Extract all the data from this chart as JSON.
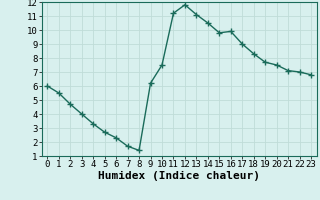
{
  "x": [
    0,
    1,
    2,
    3,
    4,
    5,
    6,
    7,
    8,
    9,
    10,
    11,
    12,
    13,
    14,
    15,
    16,
    17,
    18,
    19,
    20,
    21,
    22,
    23
  ],
  "y": [
    6.0,
    5.5,
    4.7,
    4.0,
    3.3,
    2.7,
    2.3,
    1.7,
    1.4,
    6.2,
    7.5,
    11.2,
    11.8,
    11.1,
    10.5,
    9.8,
    9.9,
    9.0,
    8.3,
    7.7,
    7.5,
    7.1,
    7.0,
    6.8
  ],
  "line_color": "#1a6b5a",
  "marker": "+",
  "marker_size": 4,
  "xlabel": "Humidex (Indice chaleur)",
  "xlim": [
    -0.5,
    23.5
  ],
  "ylim": [
    1,
    12
  ],
  "yticks": [
    1,
    2,
    3,
    4,
    5,
    6,
    7,
    8,
    9,
    10,
    11,
    12
  ],
  "xticks": [
    0,
    1,
    2,
    3,
    4,
    5,
    6,
    7,
    8,
    9,
    10,
    11,
    12,
    13,
    14,
    15,
    16,
    17,
    18,
    19,
    20,
    21,
    22,
    23
  ],
  "background_color": "#d8f0ee",
  "grid_color": "#c0dcd8",
  "tick_fontsize": 6.5,
  "xlabel_fontsize": 8,
  "linewidth": 1.0,
  "figsize": [
    3.2,
    2.0
  ],
  "dpi": 100
}
